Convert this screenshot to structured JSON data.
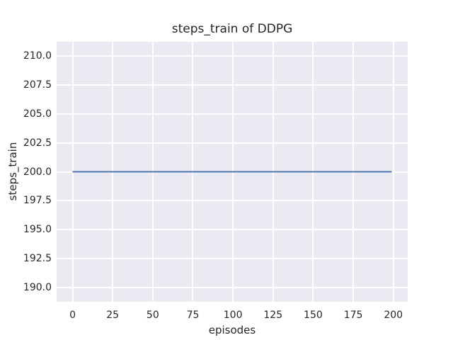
{
  "chart_data": {
    "type": "line",
    "title": "steps_train of DDPG",
    "xlabel": "episodes",
    "ylabel": "steps_train",
    "xlim": [
      -9.95,
      208.95
    ],
    "ylim": [
      188.75,
      211.25
    ],
    "xticks": [
      0,
      25,
      50,
      75,
      100,
      125,
      150,
      175,
      200
    ],
    "xtick_labels": [
      "0",
      "25",
      "50",
      "75",
      "100",
      "125",
      "150",
      "175",
      "200"
    ],
    "yticks": [
      190.0,
      192.5,
      195.0,
      197.5,
      200.0,
      202.5,
      205.0,
      207.5,
      210.0
    ],
    "ytick_labels": [
      "190.0",
      "192.5",
      "195.0",
      "197.5",
      "200.0",
      "202.5",
      "205.0",
      "207.5",
      "210.0"
    ],
    "grid": true,
    "legend": false,
    "series": [
      {
        "name": "steps_train",
        "x": [
          0,
          199
        ],
        "y": [
          200,
          200
        ],
        "note": "constant value 200 for every episode from 0 to 199",
        "color": "#4c72b0",
        "linewidth": 2
      }
    ],
    "colors": {
      "figure_background": "#ffffff",
      "axes_background": "#eaeaf2",
      "grid": "#ffffff",
      "text": "#262626"
    }
  }
}
